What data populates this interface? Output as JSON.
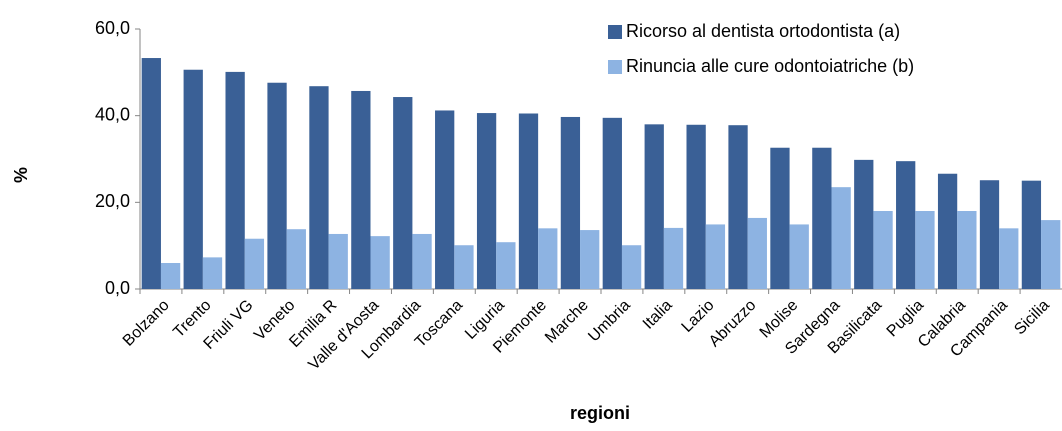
{
  "chart_data": {
    "type": "bar",
    "categories": [
      "Bolzano",
      "Trento",
      "Friuli VG",
      "Veneto",
      "Emilia R",
      "Valle d'Aosta",
      "Lombardia",
      "Toscana",
      "Liguria",
      "Piemonte",
      "Marche",
      "Umbria",
      "Italia",
      "Lazio",
      "Abruzzo",
      "Molise",
      "Sardegna",
      "Basilicata",
      "Puglia",
      "Calabria",
      "Campania",
      "Sicilia"
    ],
    "series": [
      {
        "name": "Ricorso al dentista ortodontista (a)",
        "color": "#3a6096",
        "values": [
          53.3,
          50.6,
          50.1,
          47.6,
          46.8,
          45.7,
          44.3,
          41.2,
          40.6,
          40.5,
          39.7,
          39.5,
          38.0,
          37.9,
          37.8,
          32.6,
          32.6,
          29.8,
          29.5,
          26.6,
          25.1,
          25.0
        ]
      },
      {
        "name": "Rinuncia alle cure odontoiatriche (b)",
        "color": "#8db3e2",
        "values": [
          6.0,
          7.3,
          11.6,
          13.8,
          12.7,
          12.2,
          12.7,
          10.1,
          10.8,
          14.0,
          13.6,
          10.1,
          14.1,
          14.9,
          16.4,
          14.9,
          23.5,
          18.0,
          18.0,
          18.0,
          14.0,
          15.9
        ]
      }
    ],
    "ylabel": "%",
    "xlabel": "regioni",
    "ylim": [
      0,
      60
    ],
    "yticks": [
      {
        "value": 0,
        "label": "0,0"
      },
      {
        "value": 20,
        "label": "20,0"
      },
      {
        "value": 40,
        "label": "40,0"
      },
      {
        "value": 60,
        "label": "60,0"
      }
    ],
    "legend": "top-right"
  }
}
